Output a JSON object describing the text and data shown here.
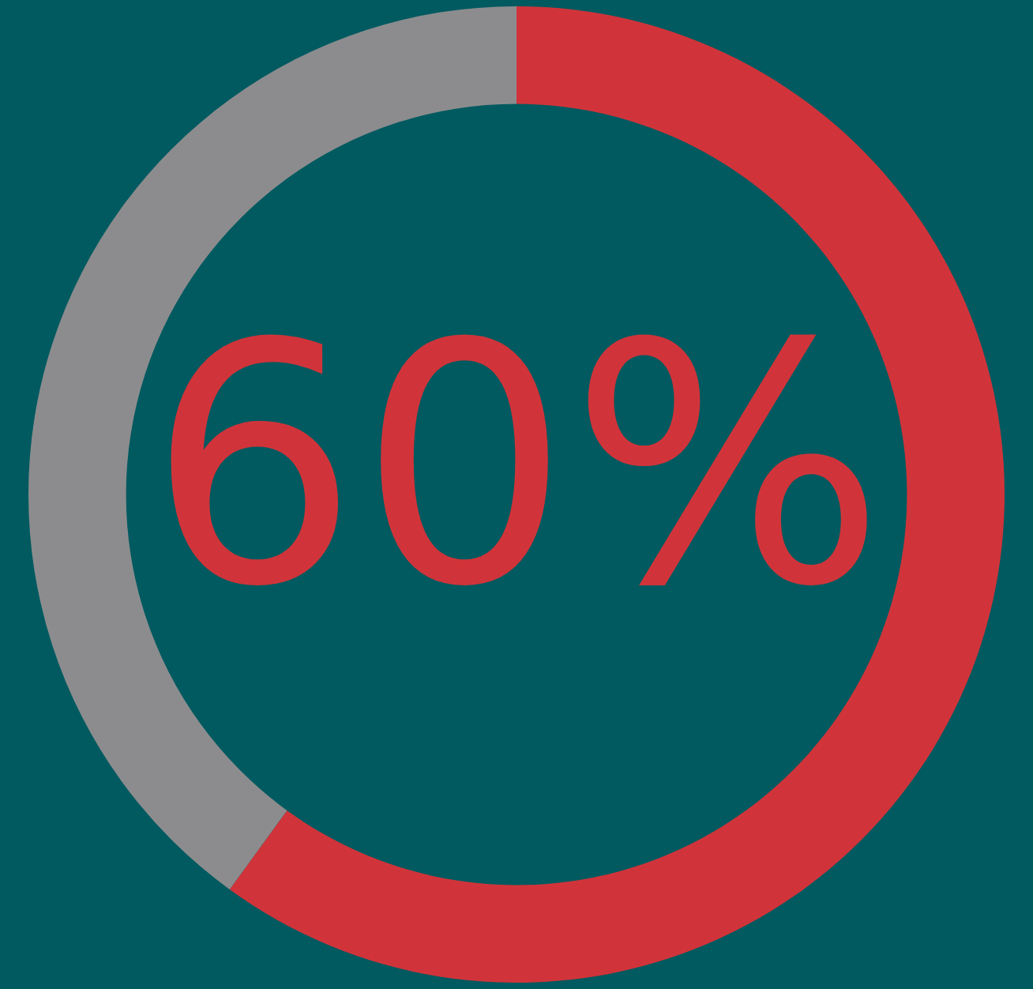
{
  "chart_data": {
    "type": "donut",
    "categories": [
      null,
      null
    ],
    "values": [
      60,
      40
    ],
    "colors": [
      "#d0343a",
      "#8c8c8e"
    ],
    "annotations": [
      "60%"
    ]
  }
}
